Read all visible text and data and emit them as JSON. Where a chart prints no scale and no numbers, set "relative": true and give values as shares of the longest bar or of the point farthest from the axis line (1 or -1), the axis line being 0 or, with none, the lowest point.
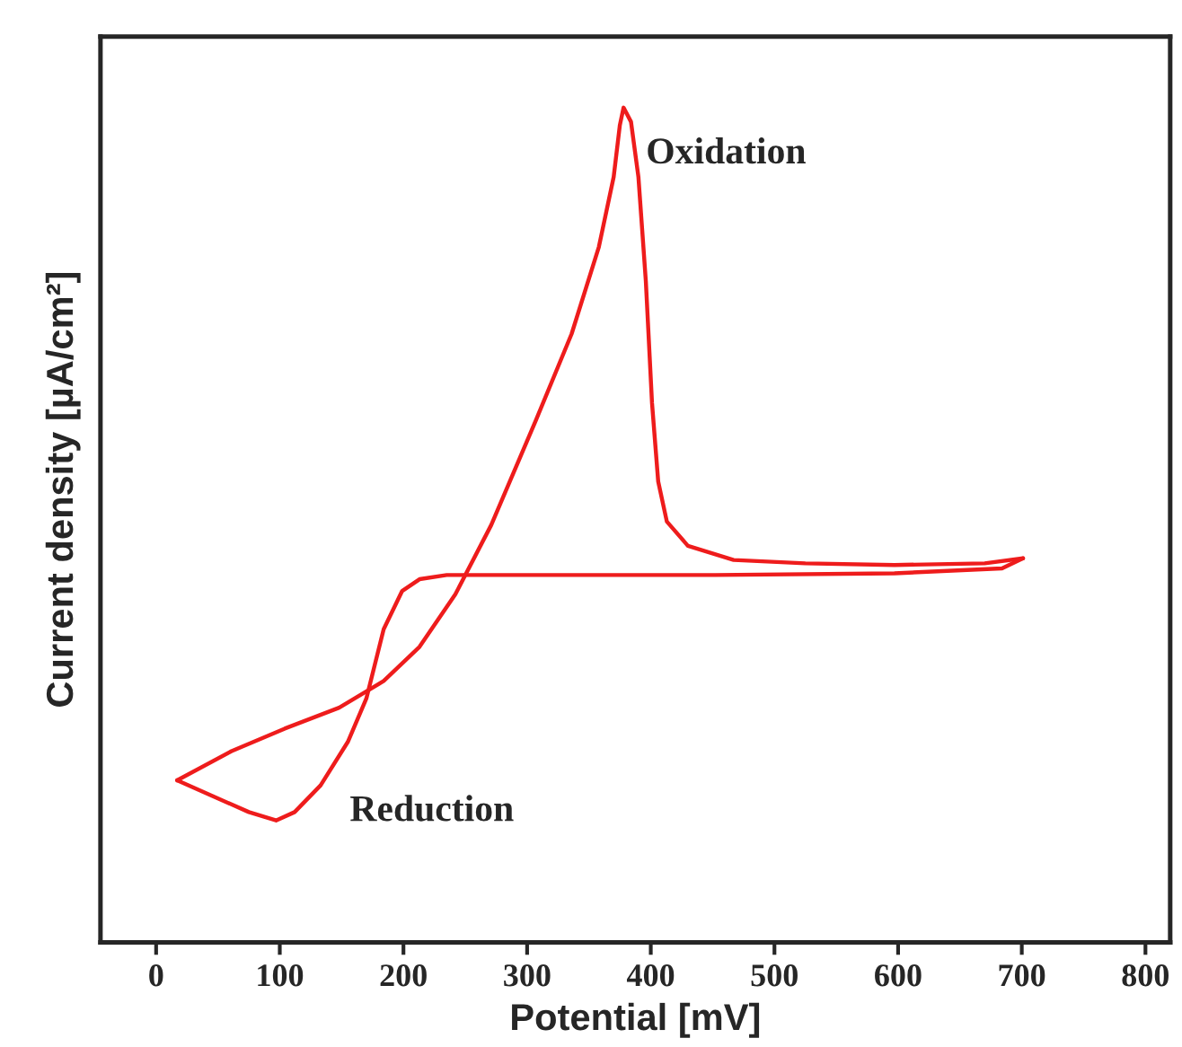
{
  "chart_data": {
    "type": "line",
    "relative": true,
    "xlabel": "Potential [mV]",
    "ylabel": "Current density [µA/cm²]",
    "xlim": [
      -45,
      820
    ],
    "xticks": [
      0,
      100,
      200,
      300,
      400,
      500,
      600,
      700,
      800
    ],
    "grid": false,
    "legend": false,
    "marker": "none",
    "line_style": "solid",
    "series": [
      {
        "color": "#ee1c1c",
        "x": [
          17,
          61,
          104,
          148,
          184,
          213,
          242,
          271,
          307,
          336,
          358,
          370,
          375,
          378,
          384,
          390,
          396,
          401,
          406,
          413,
          430,
          467,
          525,
          597,
          670,
          701
        ],
        "values": [
          0.194,
          0.229,
          0.256,
          0.281,
          0.313,
          0.354,
          0.417,
          0.5,
          0.625,
          0.729,
          0.833,
          0.917,
          0.979,
          1.0,
          0.983,
          0.917,
          0.792,
          0.646,
          0.552,
          0.504,
          0.475,
          0.458,
          0.454,
          0.452,
          0.454,
          0.46
        ]
      },
      {
        "color": "#ee1c1c",
        "x": [
          701,
          684,
          597,
          452,
          307,
          235,
          213,
          199,
          184,
          170,
          155,
          133,
          112,
          97,
          75,
          46,
          17
        ],
        "values": [
          0.46,
          0.448,
          0.442,
          0.44,
          0.44,
          0.44,
          0.435,
          0.421,
          0.375,
          0.292,
          0.24,
          0.188,
          0.156,
          0.146,
          0.156,
          0.175,
          0.194
        ]
      }
    ],
    "annotations": [
      "Oxidation",
      "Reduction"
    ]
  }
}
